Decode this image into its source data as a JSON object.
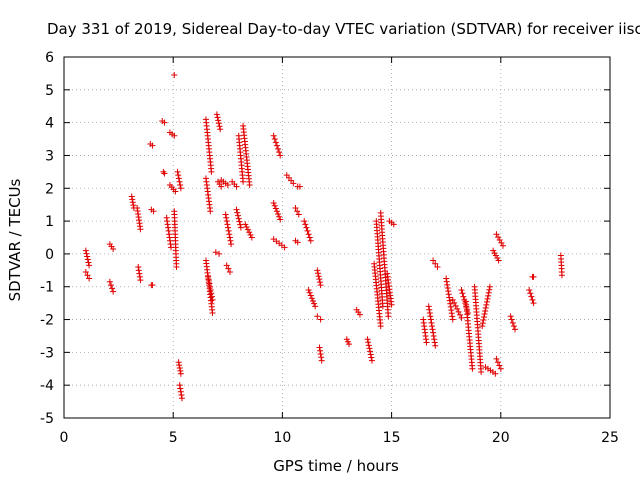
{
  "chart_data": {
    "type": "scatter",
    "title": "Day 331 of 2019, Sidereal Day-to-day VTEC variation (SDTVAR) for receiver iisc",
    "xlabel": "GPS time / hours",
    "ylabel": "SDTVAR / TECUs",
    "xlim": [
      0,
      25
    ],
    "ylim": [
      -5,
      6
    ],
    "xticks": [
      "0",
      "5",
      "10",
      "15",
      "20",
      "25"
    ],
    "yticks": [
      "-5",
      "-4",
      "-3",
      "-2",
      "-1",
      "0",
      "1",
      "2",
      "3",
      "4",
      "5",
      "6"
    ],
    "grid": true,
    "marker": "+",
    "color": "#e00000",
    "tracks": [
      {
        "x": [
          1.0,
          1.15
        ],
        "y": [
          0.1,
          -0.35
        ]
      },
      {
        "x": [
          1.0,
          1.15
        ],
        "y": [
          -0.55,
          -0.75
        ]
      },
      {
        "x": [
          2.1,
          2.25
        ],
        "y": [
          0.3,
          0.15
        ]
      },
      {
        "x": [
          2.1,
          2.25
        ],
        "y": [
          -0.85,
          -1.15
        ]
      },
      {
        "x": [
          3.1,
          3.2
        ],
        "y": [
          1.75,
          1.4
        ]
      },
      {
        "x": [
          3.35,
          3.5
        ],
        "y": [
          1.4,
          0.75
        ]
      },
      {
        "x": [
          3.4,
          3.5
        ],
        "y": [
          -0.4,
          -0.8
        ]
      },
      {
        "x": [
          4.0,
          4.1
        ],
        "y": [
          1.35,
          1.3
        ]
      },
      {
        "x": [
          3.95,
          4.05
        ],
        "y": [
          3.35,
          3.3
        ]
      },
      {
        "x": [
          4.0,
          4.05
        ],
        "y": [
          -0.95,
          -0.95
        ]
      },
      {
        "x": [
          4.5,
          4.6
        ],
        "y": [
          4.05,
          4.0
        ]
      },
      {
        "x": [
          4.55,
          4.6
        ],
        "y": [
          2.5,
          2.45
        ]
      },
      {
        "x": [
          4.7,
          4.9
        ],
        "y": [
          1.1,
          0.2
        ]
      },
      {
        "x": [
          4.85,
          5.05
        ],
        "y": [
          3.7,
          3.6
        ]
      },
      {
        "x": [
          4.85,
          5.1
        ],
        "y": [
          2.1,
          1.9
        ]
      },
      {
        "x": [
          5.05,
          5.15
        ],
        "y": [
          1.3,
          -0.4
        ]
      },
      {
        "x": [
          5.2,
          5.35
        ],
        "y": [
          2.5,
          2.0
        ]
      },
      {
        "x": [
          5.25,
          5.35
        ],
        "y": [
          -3.3,
          -3.65
        ]
      },
      {
        "x": [
          5.3,
          5.4
        ],
        "y": [
          -4.0,
          -4.4
        ]
      },
      {
        "x": [
          6.5,
          6.75
        ],
        "y": [
          4.1,
          2.5
        ]
      },
      {
        "x": [
          6.5,
          6.7
        ],
        "y": [
          2.3,
          1.3
        ]
      },
      {
        "x": [
          6.5,
          6.8
        ],
        "y": [
          -0.2,
          -1.8
        ]
      },
      {
        "x": [
          6.6,
          6.8
        ],
        "y": [
          -0.7,
          -1.4
        ]
      },
      {
        "x": [
          6.95,
          7.1
        ],
        "y": [
          0.05,
          0.0
        ]
      },
      {
        "x": [
          7.0,
          7.15
        ],
        "y": [
          4.25,
          3.8
        ]
      },
      {
        "x": [
          7.05,
          7.2
        ],
        "y": [
          2.2,
          2.05
        ]
      },
      {
        "x": [
          7.2,
          7.5
        ],
        "y": [
          2.25,
          2.1
        ]
      },
      {
        "x": [
          7.4,
          7.65
        ],
        "y": [
          1.2,
          0.3
        ]
      },
      {
        "x": [
          7.45,
          7.6
        ],
        "y": [
          -0.35,
          -0.55
        ]
      },
      {
        "x": [
          7.7,
          7.9
        ],
        "y": [
          2.2,
          2.05
        ]
      },
      {
        "x": [
          7.9,
          8.1
        ],
        "y": [
          1.35,
          0.8
        ]
      },
      {
        "x": [
          8.0,
          8.2
        ],
        "y": [
          3.6,
          2.2
        ]
      },
      {
        "x": [
          8.2,
          8.5
        ],
        "y": [
          3.9,
          2.1
        ]
      },
      {
        "x": [
          8.3,
          8.6
        ],
        "y": [
          0.9,
          0.5
        ]
      },
      {
        "x": [
          9.6,
          9.9
        ],
        "y": [
          3.6,
          3.0
        ]
      },
      {
        "x": [
          9.6,
          9.9
        ],
        "y": [
          1.55,
          1.05
        ]
      },
      {
        "x": [
          9.6,
          10.1
        ],
        "y": [
          0.45,
          0.2
        ]
      },
      {
        "x": [
          10.2,
          10.5
        ],
        "y": [
          2.4,
          2.15
        ]
      },
      {
        "x": [
          10.6,
          10.75
        ],
        "y": [
          1.4,
          1.2
        ]
      },
      {
        "x": [
          10.6,
          10.7
        ],
        "y": [
          0.4,
          0.35
        ]
      },
      {
        "x": [
          10.7,
          10.8
        ],
        "y": [
          2.05,
          2.05
        ]
      },
      {
        "x": [
          11.0,
          11.3
        ],
        "y": [
          1.0,
          0.4
        ]
      },
      {
        "x": [
          11.2,
          11.5
        ],
        "y": [
          -1.1,
          -1.6
        ]
      },
      {
        "x": [
          11.6,
          11.75
        ],
        "y": [
          -0.5,
          -0.95
        ]
      },
      {
        "x": [
          11.6,
          11.75
        ],
        "y": [
          -1.9,
          -2.0
        ]
      },
      {
        "x": [
          11.7,
          11.8
        ],
        "y": [
          -2.85,
          -3.25
        ]
      },
      {
        "x": [
          12.95,
          13.05
        ],
        "y": [
          -2.6,
          -2.75
        ]
      },
      {
        "x": [
          13.4,
          13.55
        ],
        "y": [
          -1.7,
          -1.85
        ]
      },
      {
        "x": [
          13.9,
          14.1
        ],
        "y": [
          -2.6,
          -3.25
        ]
      },
      {
        "x": [
          14.2,
          14.5
        ],
        "y": [
          -0.3,
          -2.2
        ]
      },
      {
        "x": [
          14.3,
          14.6
        ],
        "y": [
          1.0,
          -1.6
        ]
      },
      {
        "x": [
          14.5,
          14.85
        ],
        "y": [
          1.25,
          -1.9
        ]
      },
      {
        "x": [
          14.8,
          15.0
        ],
        "y": [
          -0.6,
          -1.55
        ]
      },
      {
        "x": [
          14.9,
          15.1
        ],
        "y": [
          1.0,
          0.9
        ]
      },
      {
        "x": [
          16.45,
          16.6
        ],
        "y": [
          -2.0,
          -2.7
        ]
      },
      {
        "x": [
          16.7,
          17.0
        ],
        "y": [
          -1.6,
          -2.8
        ]
      },
      {
        "x": [
          16.9,
          17.1
        ],
        "y": [
          -0.2,
          -0.4
        ]
      },
      {
        "x": [
          17.5,
          17.8
        ],
        "y": [
          -0.75,
          -2.0
        ]
      },
      {
        "x": [
          17.8,
          18.2
        ],
        "y": [
          -1.4,
          -1.95
        ]
      },
      {
        "x": [
          18.2,
          18.5
        ],
        "y": [
          -1.1,
          -1.8
        ]
      },
      {
        "x": [
          18.4,
          18.7
        ],
        "y": [
          -1.45,
          -3.5
        ]
      },
      {
        "x": [
          18.8,
          19.1
        ],
        "y": [
          -1.0,
          -3.6
        ]
      },
      {
        "x": [
          19.15,
          19.5
        ],
        "y": [
          -2.2,
          -1.0
        ]
      },
      {
        "x": [
          19.3,
          19.75
        ],
        "y": [
          -3.45,
          -3.65
        ]
      },
      {
        "x": [
          19.65,
          19.9
        ],
        "y": [
          0.1,
          -0.2
        ]
      },
      {
        "x": [
          19.8,
          20.0
        ],
        "y": [
          -3.2,
          -3.5
        ]
      },
      {
        "x": [
          19.8,
          20.1
        ],
        "y": [
          0.6,
          0.25
        ]
      },
      {
        "x": [
          20.45,
          20.65
        ],
        "y": [
          -1.9,
          -2.3
        ]
      },
      {
        "x": [
          21.3,
          21.5
        ],
        "y": [
          -1.1,
          -1.5
        ]
      },
      {
        "x": [
          21.45,
          21.5
        ],
        "y": [
          -0.7,
          -0.7
        ]
      },
      {
        "x": [
          22.75,
          22.8
        ],
        "y": [
          -0.05,
          -0.65
        ]
      }
    ],
    "points": [
      {
        "x": 5.05,
        "y": 5.45
      }
    ]
  }
}
